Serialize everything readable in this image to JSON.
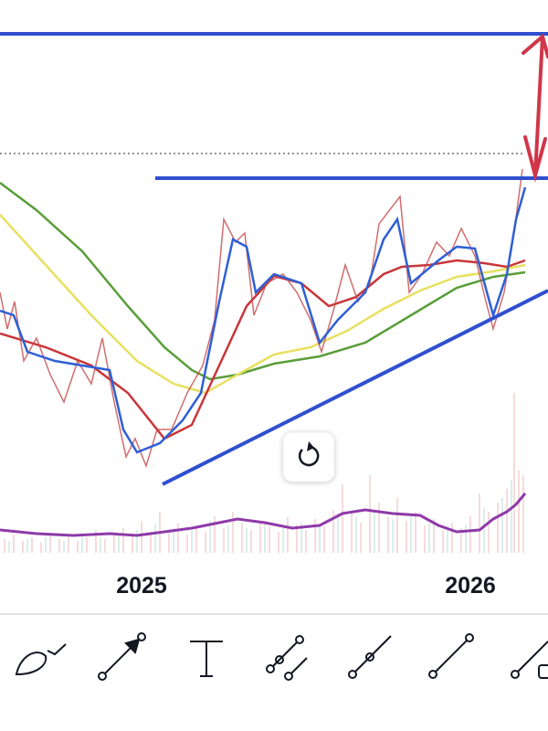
{
  "x_axis": {
    "labels": [
      "2025",
      "2026"
    ]
  }
}
